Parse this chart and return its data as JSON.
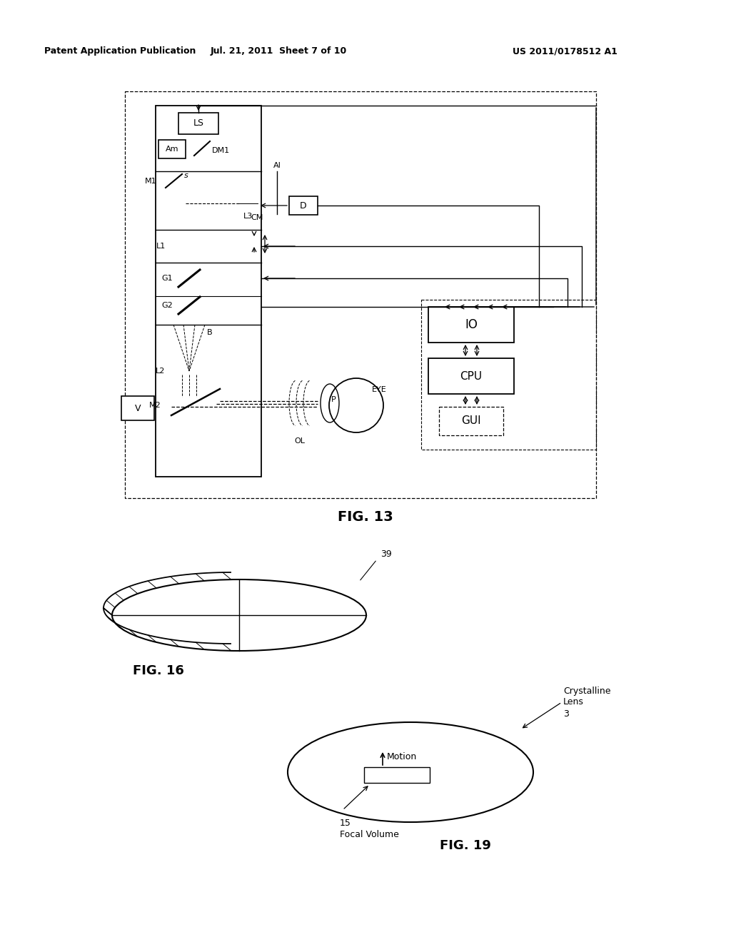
{
  "bg_color": "#ffffff",
  "header_left": "Patent Application Publication",
  "header_center": "Jul. 21, 2011  Sheet 7 of 10",
  "header_right": "US 2011/0178512 A1",
  "fig13_label": "FIG. 13",
  "fig16_label": "FIG. 16",
  "fig19_label": "FIG. 19",
  "label_39": "39",
  "label_3": "3",
  "label_15": "15",
  "label_crystalline_lens": "Crystalline\nLens",
  "label_focal_volume": "Focal Volume",
  "label_motion": "Motion"
}
